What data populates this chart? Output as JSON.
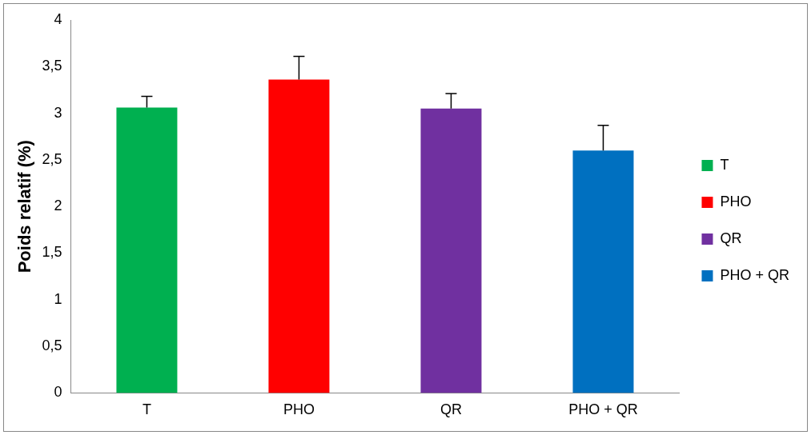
{
  "chart_data": {
    "type": "bar",
    "ylabel": "Poids relatif (%)",
    "categories": [
      "T",
      "PHO",
      "QR",
      "PHO + QR"
    ],
    "series": [
      {
        "name": "T",
        "color": "#00b050",
        "values": [
          3.06,
          null,
          null,
          null
        ],
        "errors": [
          [
            3.06,
            3.18
          ],
          null,
          null,
          null
        ]
      },
      {
        "name": "PHO",
        "color": "#ff0000",
        "values": [
          null,
          3.36,
          null,
          null
        ],
        "errors": [
          null,
          [
            3.36,
            3.61
          ],
          null,
          null
        ]
      },
      {
        "name": "QR",
        "color": "#7030a0",
        "values": [
          null,
          null,
          3.05,
          null
        ],
        "errors": [
          null,
          null,
          [
            3.05,
            3.21
          ],
          null
        ]
      },
      {
        "name": "PHO + QR",
        "color": "#0070c0",
        "values": [
          null,
          null,
          null,
          2.6
        ],
        "errors": [
          null,
          null,
          null,
          [
            2.6,
            2.87
          ]
        ]
      }
    ],
    "ylim": [
      0,
      4
    ],
    "yticks": [
      0,
      {
        "value": 0.5,
        "label": "0,5"
      },
      1,
      {
        "value": 1.5,
        "label": "1,5"
      },
      2,
      {
        "value": 2.5,
        "label": "2,5"
      },
      3,
      {
        "value": 3.5,
        "label": "3,5"
      },
      4
    ],
    "legend": "right"
  }
}
